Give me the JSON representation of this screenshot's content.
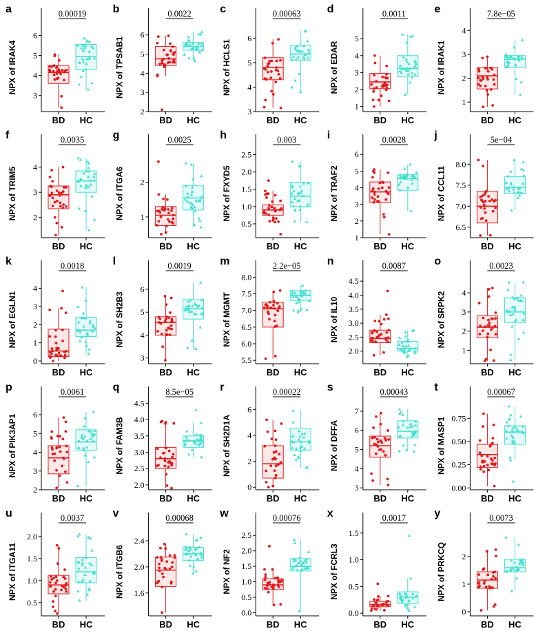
{
  "colors": {
    "BD": "#e31a1c",
    "HC": "#40e0d0",
    "BD_fill": "#fde8e8",
    "HC_fill": "#e4fbf8"
  },
  "markers": {
    "BD": "circle",
    "HC": "triangle"
  },
  "chart_data": [
    {
      "type": "box",
      "panel": "a",
      "ylabel": "NPX of IRAK4",
      "categories": [
        "BD",
        "HC"
      ],
      "p_value": "0.00019",
      "ylim": [
        2.2,
        6.6
      ],
      "yticks": [
        3,
        4,
        5,
        6
      ],
      "series": [
        {
          "name": "BD",
          "min": 2.4,
          "q1": 3.6,
          "median": 4.15,
          "q3": 4.5,
          "max": 5.05
        },
        {
          "name": "HC",
          "min": 3.3,
          "q1": 4.3,
          "median": 4.95,
          "q3": 5.55,
          "max": 5.85
        }
      ]
    },
    {
      "type": "box",
      "panel": "b",
      "ylabel": "NPX of TPSAB1",
      "categories": [
        "BD",
        "HC"
      ],
      "p_value": "0.0022",
      "ylim": [
        2,
        6.6
      ],
      "yticks": [
        2,
        3,
        4,
        5,
        6
      ],
      "series": [
        {
          "name": "BD",
          "min": 3.85,
          "q1": 4.4,
          "median": 4.75,
          "q3": 5.4,
          "max": 5.95,
          "outliers": [
            2.1
          ]
        },
        {
          "name": "HC",
          "min": 4.65,
          "q1": 5.2,
          "median": 5.4,
          "q3": 5.6,
          "max": 6.15
        }
      ]
    },
    {
      "type": "box",
      "panel": "c",
      "ylabel": "NPX of HCLS1",
      "categories": [
        "BD",
        "HC"
      ],
      "p_value": "0.00063",
      "ylim": [
        3,
        6.6
      ],
      "yticks": [
        3,
        4,
        5,
        6
      ],
      "series": [
        {
          "name": "BD",
          "min": 3.15,
          "q1": 4.3,
          "median": 4.8,
          "q3": 5.2,
          "max": 5.95
        },
        {
          "name": "HC",
          "min": 3.8,
          "q1": 5.1,
          "median": 5.35,
          "q3": 5.7,
          "max": 6.3
        }
      ]
    },
    {
      "type": "box",
      "panel": "d",
      "ylabel": "NPX of EDAR",
      "categories": [
        "BD",
        "HC"
      ],
      "p_value": "0.0011",
      "ylim": [
        0.7,
        5.9
      ],
      "yticks": [
        1,
        2,
        3,
        4,
        5
      ],
      "series": [
        {
          "name": "BD",
          "min": 1.0,
          "q1": 2.05,
          "median": 2.45,
          "q3": 2.95,
          "max": 4.0
        },
        {
          "name": "HC",
          "min": 1.7,
          "q1": 2.75,
          "median": 3.25,
          "q3": 4.0,
          "max": 5.25
        }
      ]
    },
    {
      "type": "box",
      "panel": "e",
      "ylabel": "NPX of IRAK1",
      "categories": [
        "BD",
        "HC"
      ],
      "p_value": "7.8e−05",
      "ylim": [
        0.6,
        4.3
      ],
      "yticks": [
        1,
        2,
        3,
        4
      ],
      "series": [
        {
          "name": "BD",
          "min": 0.8,
          "q1": 1.55,
          "median": 2.1,
          "q3": 2.45,
          "max": 2.9
        },
        {
          "name": "HC",
          "min": 1.3,
          "q1": 2.45,
          "median": 2.8,
          "q3": 2.95,
          "max": 3.6
        }
      ]
    },
    {
      "type": "box",
      "panel": "f",
      "ylabel": "NPX of TRIM5",
      "categories": [
        "BD",
        "HC"
      ],
      "p_value": "0.0035",
      "ylim": [
        1.2,
        4.7
      ],
      "yticks": [
        2,
        3,
        4
      ],
      "series": [
        {
          "name": "BD",
          "min": 1.3,
          "q1": 2.35,
          "median": 2.9,
          "q3": 3.25,
          "max": 4.0
        },
        {
          "name": "HC",
          "min": 1.5,
          "q1": 3.0,
          "median": 3.45,
          "q3": 3.85,
          "max": 4.35
        }
      ]
    },
    {
      "type": "box",
      "panel": "g",
      "ylabel": "NPX of ITGA6",
      "categories": [
        "BD",
        "HC"
      ],
      "p_value": "0.0025",
      "ylim": [
        0.4,
        2.95
      ],
      "yticks": [
        1,
        2
      ],
      "series": [
        {
          "name": "BD",
          "min": 0.5,
          "q1": 0.75,
          "median": 1.05,
          "q3": 1.3,
          "max": 1.65,
          "outliers": [
            2.6
          ]
        },
        {
          "name": "HC",
          "min": 0.7,
          "q1": 1.2,
          "median": 1.55,
          "q3": 1.9,
          "max": 2.55
        }
      ]
    },
    {
      "type": "box",
      "panel": "h",
      "ylabel": "NPX of FXYD5",
      "categories": [
        "BD",
        "HC"
      ],
      "p_value": "0.003",
      "ylim": [
        0.1,
        2.65
      ],
      "yticks": [
        0.5,
        1.0,
        1.5,
        2.0,
        2.5
      ],
      "series": [
        {
          "name": "BD",
          "min": 0.55,
          "q1": 0.75,
          "median": 0.9,
          "q3": 1.05,
          "max": 1.45,
          "outliers": [
            0.2,
            1.75
          ]
        },
        {
          "name": "HC",
          "min": 0.55,
          "q1": 1.0,
          "median": 1.3,
          "q3": 1.7,
          "max": 2.3
        }
      ]
    },
    {
      "type": "box",
      "panel": "i",
      "ylabel": "NPX of TRAF2",
      "categories": [
        "BD",
        "HC"
      ],
      "p_value": "0.0028",
      "ylim": [
        1,
        6.3
      ],
      "yticks": [
        1,
        2,
        3,
        4,
        5,
        6
      ],
      "series": [
        {
          "name": "BD",
          "min": 1.2,
          "q1": 3.1,
          "median": 3.75,
          "q3": 4.35,
          "max": 5.1
        },
        {
          "name": "HC",
          "min": 2.6,
          "q1": 3.85,
          "median": 4.55,
          "q3": 4.8,
          "max": 5.4
        }
      ]
    },
    {
      "type": "box",
      "panel": "j",
      "ylabel": "NPX of CCL11",
      "categories": [
        "BD",
        "HC"
      ],
      "p_value": "5e−04",
      "ylim": [
        6.25,
        8.35
      ],
      "yticks": [
        6.5,
        7.0,
        7.5,
        8.0
      ],
      "series": [
        {
          "name": "BD",
          "min": 6.3,
          "q1": 6.6,
          "median": 7.0,
          "q3": 7.35,
          "max": 8.1
        },
        {
          "name": "HC",
          "min": 6.9,
          "q1": 7.3,
          "median": 7.45,
          "q3": 7.7,
          "max": 8.1
        }
      ]
    },
    {
      "type": "box",
      "panel": "k",
      "ylabel": "NPX of EGLN1",
      "categories": [
        "BD",
        "HC"
      ],
      "p_value": "0.0018",
      "ylim": [
        -0.15,
        4.7
      ],
      "yticks": [
        0,
        1,
        2,
        3,
        4
      ],
      "series": [
        {
          "name": "BD",
          "min": 0.0,
          "q1": 0.25,
          "median": 0.55,
          "q3": 1.75,
          "max": 2.9,
          "outliers": [
            3.85
          ]
        },
        {
          "name": "HC",
          "min": 0.4,
          "q1": 1.35,
          "median": 1.7,
          "q3": 2.4,
          "max": 4.05
        }
      ]
    },
    {
      "type": "box",
      "panel": "l",
      "ylabel": "NPX of SH2B3",
      "categories": [
        "BD",
        "HC"
      ],
      "p_value": "0.0019",
      "ylim": [
        2.75,
        6.6
      ],
      "yticks": [
        3,
        4,
        5,
        6
      ],
      "series": [
        {
          "name": "BD",
          "min": 2.9,
          "q1": 4.0,
          "median": 4.55,
          "q3": 4.8,
          "max": 5.7
        },
        {
          "name": "HC",
          "min": 3.4,
          "q1": 4.7,
          "median": 5.15,
          "q3": 5.55,
          "max": 6.3
        }
      ]
    },
    {
      "type": "box",
      "panel": "m",
      "ylabel": "NPX of MGMT",
      "categories": [
        "BD",
        "HC"
      ],
      "p_value": "2.2e−05",
      "ylim": [
        5.4,
        8.05
      ],
      "yticks": [
        5.5,
        6.0,
        6.5,
        7.0,
        7.5,
        8.0
      ],
      "series": [
        {
          "name": "BD",
          "min": 5.55,
          "q1": 6.5,
          "median": 7.05,
          "q3": 7.25,
          "max": 7.6
        },
        {
          "name": "HC",
          "min": 6.95,
          "q1": 7.3,
          "median": 7.45,
          "q3": 7.6,
          "max": 7.75
        }
      ]
    },
    {
      "type": "box",
      "panel": "n",
      "ylabel": "NPX of IL10",
      "categories": [
        "BD",
        "HC"
      ],
      "p_value": "0.0087",
      "ylim": [
        1.55,
        4.7
      ],
      "yticks": [
        2.0,
        2.5,
        3.0,
        3.5,
        4.0,
        4.5
      ],
      "series": [
        {
          "name": "BD",
          "min": 1.85,
          "q1": 2.3,
          "median": 2.45,
          "q3": 2.75,
          "max": 3.3,
          "outliers": [
            4.15
          ]
        },
        {
          "name": "HC",
          "min": 1.8,
          "q1": 2.0,
          "median": 2.1,
          "q3": 2.35,
          "max": 2.75
        }
      ]
    },
    {
      "type": "box",
      "panel": "o",
      "ylabel": "NPX of SRPK2",
      "categories": [
        "BD",
        "HC"
      ],
      "p_value": "0.0023",
      "ylim": [
        0.3,
        4.9
      ],
      "yticks": [
        1,
        2,
        3,
        4
      ],
      "series": [
        {
          "name": "BD",
          "min": 0.45,
          "q1": 1.65,
          "median": 2.2,
          "q3": 2.8,
          "max": 4.25
        },
        {
          "name": "HC",
          "min": 0.5,
          "q1": 2.45,
          "median": 3.0,
          "q3": 3.75,
          "max": 4.55
        }
      ]
    },
    {
      "type": "box",
      "panel": "p",
      "ylabel": "NPX of PIK3AP1",
      "categories": [
        "BD",
        "HC"
      ],
      "p_value": "0.0061",
      "ylim": [
        2,
        6.7
      ],
      "yticks": [
        2,
        3,
        4,
        5,
        6
      ],
      "series": [
        {
          "name": "BD",
          "min": 2.1,
          "q1": 2.85,
          "median": 3.7,
          "q3": 4.35,
          "max": 5.85
        },
        {
          "name": "HC",
          "min": 2.2,
          "q1": 4.1,
          "median": 4.55,
          "q3": 5.2,
          "max": 6.15
        }
      ]
    },
    {
      "type": "box",
      "panel": "q",
      "ylabel": "NPX of FAM3B",
      "categories": [
        "BD",
        "HC"
      ],
      "p_value": "8.5e−05",
      "ylim": [
        1.85,
        4.55
      ],
      "yticks": [
        2.0,
        2.5,
        3.0,
        3.5,
        4.0,
        4.5
      ],
      "series": [
        {
          "name": "BD",
          "min": 1.9,
          "q1": 2.5,
          "median": 2.8,
          "q3": 3.15,
          "max": 3.95
        },
        {
          "name": "HC",
          "min": 2.85,
          "q1": 3.15,
          "median": 3.35,
          "q3": 3.5,
          "max": 3.9,
          "outliers": [
            4.3
          ]
        }
      ]
    },
    {
      "type": "box",
      "panel": "r",
      "ylabel": "NPX of SH2D1A",
      "categories": [
        "BD",
        "HC"
      ],
      "p_value": "0.00022",
      "ylim": [
        -0.2,
        6.6
      ],
      "yticks": [
        0,
        2,
        4,
        6
      ],
      "series": [
        {
          "name": "BD",
          "min": 0.0,
          "q1": 0.7,
          "median": 1.8,
          "q3": 3.2,
          "max": 5.2
        },
        {
          "name": "HC",
          "min": 1.5,
          "q1": 2.85,
          "median": 3.5,
          "q3": 4.55,
          "max": 5.9
        }
      ]
    },
    {
      "type": "box",
      "panel": "s",
      "ylabel": "NPX of DFFA",
      "categories": [
        "BD",
        "HC"
      ],
      "p_value": "0.00043",
      "ylim": [
        2.9,
        7.5
      ],
      "yticks": [
        3,
        4,
        5,
        6,
        7
      ],
      "series": [
        {
          "name": "BD",
          "min": 3.15,
          "q1": 4.6,
          "median": 5.2,
          "q3": 5.7,
          "max": 6.9
        },
        {
          "name": "HC",
          "min": 4.9,
          "q1": 5.6,
          "median": 5.95,
          "q3": 6.5,
          "max": 7.1
        }
      ]
    },
    {
      "type": "box",
      "panel": "t",
      "ylabel": "NPX of MASP1",
      "categories": [
        "BD",
        "HC"
      ],
      "p_value": "0.00067",
      "ylim": [
        -0.02,
        0.93
      ],
      "yticks": [
        0.0,
        0.25,
        0.5,
        0.75
      ],
      "series": [
        {
          "name": "BD",
          "min": 0.02,
          "q1": 0.22,
          "median": 0.36,
          "q3": 0.47,
          "max": 0.8
        },
        {
          "name": "HC",
          "min": 0.3,
          "q1": 0.47,
          "median": 0.6,
          "q3": 0.67,
          "max": 0.88,
          "outliers": [
            0.07
          ]
        }
      ]
    },
    {
      "type": "box",
      "panel": "u",
      "ylabel": "NPX of ITGA11",
      "categories": [
        "BD",
        "HC"
      ],
      "p_value": "0.0037",
      "ylim": [
        0.2,
        2.2
      ],
      "yticks": [
        0.5,
        1.0,
        1.5,
        2.0
      ],
      "series": [
        {
          "name": "BD",
          "min": 0.25,
          "q1": 0.7,
          "median": 0.9,
          "q3": 1.12,
          "max": 1.8
        },
        {
          "name": "HC",
          "min": 0.55,
          "q1": 0.95,
          "median": 1.2,
          "q3": 1.52,
          "max": 2.05
        }
      ]
    },
    {
      "type": "box",
      "panel": "v",
      "ylabel": "NPX of ITGB6",
      "categories": [
        "BD",
        "HC"
      ],
      "p_value": "0.00068",
      "ylim": [
        1.25,
        2.6
      ],
      "yticks": [
        1.6,
        2.0,
        2.4
      ],
      "series": [
        {
          "name": "BD",
          "min": 1.3,
          "q1": 1.7,
          "median": 1.95,
          "q3": 2.15,
          "max": 2.35
        },
        {
          "name": "HC",
          "min": 1.9,
          "q1": 2.1,
          "median": 2.2,
          "q3": 2.3,
          "max": 2.5
        }
      ]
    },
    {
      "type": "box",
      "panel": "w",
      "ylabel": "NPX of NF2",
      "categories": [
        "BD",
        "HC"
      ],
      "p_value": "0.00076",
      "ylim": [
        -0.1,
        2.75
      ],
      "yticks": [
        0.0,
        0.5,
        1.0,
        1.5,
        2.0,
        2.5
      ],
      "series": [
        {
          "name": "BD",
          "min": 0.25,
          "q1": 0.75,
          "median": 0.9,
          "q3": 1.1,
          "max": 1.4,
          "outliers": [
            2.15
          ]
        },
        {
          "name": "HC",
          "min": 0.05,
          "q1": 1.35,
          "median": 1.5,
          "q3": 1.75,
          "max": 2.35
        }
      ]
    },
    {
      "type": "box",
      "panel": "x",
      "ylabel": "NPX of FCRL3",
      "categories": [
        "BD",
        "HC"
      ],
      "p_value": "0.0017",
      "ylim": [
        -0.05,
        1.6
      ],
      "yticks": [
        0.0,
        0.5,
        1.0,
        1.5
      ],
      "series": [
        {
          "name": "BD",
          "min": 0.05,
          "q1": 0.12,
          "median": 0.16,
          "q3": 0.22,
          "max": 0.32,
          "outliers": [
            0.55
          ]
        },
        {
          "name": "HC",
          "min": 0.05,
          "q1": 0.18,
          "median": 0.3,
          "q3": 0.4,
          "max": 0.65,
          "outliers": [
            1.45
          ]
        }
      ]
    },
    {
      "type": "box",
      "panel": "y",
      "ylabel": "NPX of PRKCQ",
      "categories": [
        "BD",
        "HC"
      ],
      "p_value": "0.0073",
      "ylim": [
        -0.15,
        3.05
      ],
      "yticks": [
        0,
        1,
        2
      ],
      "series": [
        {
          "name": "BD",
          "min": 0.05,
          "q1": 0.85,
          "median": 1.15,
          "q3": 1.45,
          "max": 2.25
        },
        {
          "name": "HC",
          "min": 0.75,
          "q1": 1.45,
          "median": 1.6,
          "q3": 1.9,
          "max": 2.7
        }
      ]
    }
  ]
}
